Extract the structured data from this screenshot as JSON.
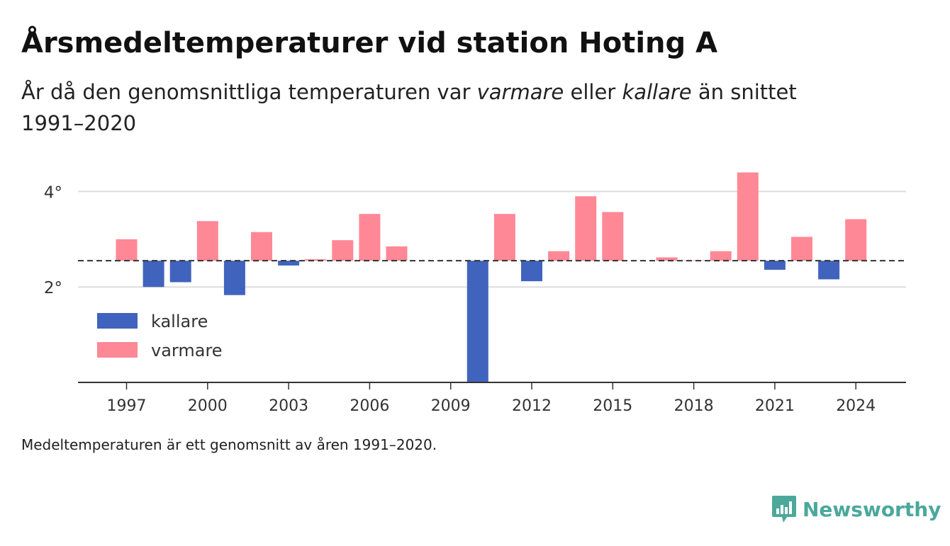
{
  "title": "Årsmedeltemperaturer vid station Hoting A",
  "subtitle": {
    "part1": "År då den genomsnittliga temperaturen var ",
    "warmer": "varmare",
    "part2": " eller ",
    "colder": "kallare",
    "part3": " än snittet 1991–2020"
  },
  "footnote": "Medeltemperaturen är ett genomsnitt av åren 1991–2020.",
  "brand": "Newsworthy",
  "colors": {
    "colder": "#4063bd",
    "warmer": "#ff8896",
    "grid": "#dddddd",
    "axis": "#333333",
    "brand": "#4ba89b"
  },
  "chart_data": {
    "type": "bar",
    "baseline": 2.55,
    "ylim": [
      0,
      4.6
    ],
    "yticks": [
      {
        "value": 2,
        "label": "2°"
      },
      {
        "value": 4,
        "label": "4°"
      }
    ],
    "xticks": [
      1997,
      2000,
      2003,
      2006,
      2009,
      2012,
      2015,
      2018,
      2021,
      2024
    ],
    "legend": [
      {
        "key": "colder",
        "label": "kallare"
      },
      {
        "key": "warmer",
        "label": "varmare"
      }
    ],
    "legend_position": "left",
    "grid": true,
    "years": [
      1997,
      1998,
      1999,
      2000,
      2001,
      2002,
      2003,
      2004,
      2005,
      2006,
      2007,
      2008,
      2009,
      2010,
      2011,
      2012,
      2013,
      2014,
      2015,
      2016,
      2017,
      2018,
      2019,
      2020,
      2021,
      2022,
      2023,
      2024
    ],
    "values": [
      3.0,
      2.0,
      2.1,
      3.38,
      1.83,
      3.15,
      2.45,
      2.58,
      2.98,
      3.53,
      2.85,
      null,
      null,
      0.0,
      3.53,
      2.12,
      2.75,
      3.9,
      3.57,
      null,
      2.62,
      2.56,
      2.75,
      4.4,
      2.36,
      3.05,
      2.16,
      3.42
    ]
  }
}
